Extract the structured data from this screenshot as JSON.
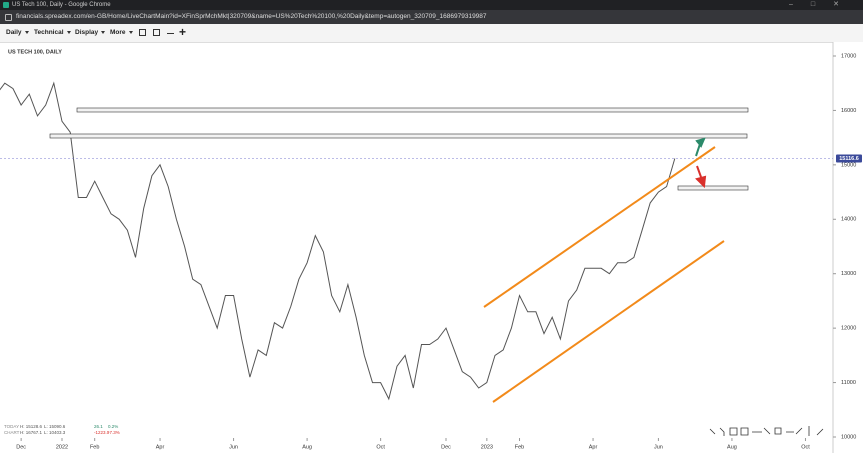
{
  "window": {
    "title": "US Tech 100, Daily - Google Chrome",
    "url": "financials.spreadex.com/en-GB/Home/LiveChartMain?id=XFinSprMchMkt|320709&name=US%20Tech%20100,%20Daily&temp=autogen_320709_1686979319987"
  },
  "toolbar": {
    "menus": [
      "Daily",
      "Technical",
      "Display",
      "More"
    ]
  },
  "info": {
    "rows": [
      [
        "TODAY",
        "H: 15128.6",
        "L: 15090.6",
        "26.1",
        "0.2%"
      ],
      [
        "CHART",
        "H: 16767.1",
        "L: 10403.3",
        "-1223.0",
        "-7.3%"
      ]
    ]
  },
  "chart_data": {
    "type": "line",
    "title": "US TECH 100, DAILY",
    "color": "#555555",
    "categories": [
      null,
      null,
      null,
      "Dec",
      null,
      null,
      null,
      null,
      "2022",
      null,
      null,
      null,
      "Feb",
      null,
      null,
      null,
      null,
      null,
      null,
      null,
      "Apr",
      null,
      null,
      null,
      null,
      null,
      null,
      null,
      null,
      "Jun",
      null,
      null,
      null,
      null,
      null,
      null,
      null,
      null,
      "Aug",
      null,
      null,
      null,
      null,
      null,
      null,
      null,
      null,
      "Oct",
      null,
      null,
      null,
      null,
      null,
      null,
      null,
      "Dec",
      null,
      null,
      null,
      null,
      "2023",
      null,
      null,
      null,
      "Feb",
      null,
      null,
      null,
      null,
      null,
      null,
      null,
      null,
      "Apr",
      null,
      null,
      null,
      null,
      null,
      null,
      null,
      "Jun",
      null,
      null,
      null,
      null,
      null,
      null,
      null,
      null,
      "Aug",
      null,
      null,
      null,
      null,
      null,
      null,
      null,
      null,
      "Oct"
    ],
    "values": [
      16300,
      16500,
      16400,
      16100,
      16300,
      15900,
      16100,
      16500,
      15800,
      15600,
      14400,
      14400,
      14700,
      14400,
      14100,
      14000,
      13800,
      13300,
      14200,
      14800,
      15000,
      14600,
      14000,
      13500,
      12900,
      12800,
      12400,
      12000,
      12600,
      12600,
      11800,
      11100,
      11600,
      11500,
      12100,
      12000,
      12400,
      12900,
      13200,
      13700,
      13400,
      12600,
      12300,
      12800,
      12200,
      11500,
      11000,
      11000,
      10700,
      11300,
      11500,
      10900,
      11700,
      11700,
      11800,
      12000,
      11600,
      11200,
      11100,
      10900,
      11000,
      11500,
      11600,
      12000,
      12600,
      12300,
      12300,
      11900,
      12200,
      11800,
      12500,
      12700,
      13100,
      13100,
      13100,
      13000,
      13200,
      13200,
      13300,
      13800,
      14300,
      14500,
      14600,
      15116.6,
      null,
      null,
      null,
      null,
      null,
      null,
      null,
      null,
      null,
      null,
      null,
      null,
      null,
      null,
      null,
      null
    ],
    "last_price": 15116.6,
    "ylim": [
      9706,
      17257
    ],
    "yticks": [
      10000,
      11000,
      12000,
      13000,
      14000,
      15000,
      16000,
      17000
    ]
  }
}
